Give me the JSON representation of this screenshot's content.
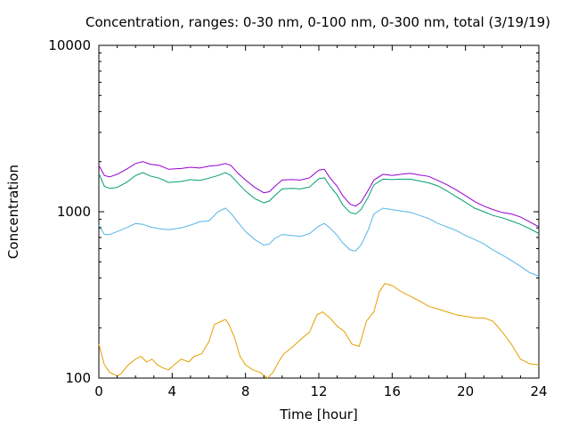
{
  "chart_data": {
    "type": "line",
    "title": "Concentration, ranges: 0-30 nm, 0-100 nm, 0-300 nm, total (3/19/19)",
    "xlabel": "Time [hour]",
    "ylabel": "Concentration",
    "xlim": [
      0,
      24
    ],
    "ylim": [
      100,
      10000
    ],
    "y_scale": "log",
    "grid": false,
    "x_ticks": [
      0,
      4,
      8,
      12,
      16,
      20,
      24
    ],
    "x_tick_labels": [
      "0",
      "4",
      "8",
      "12",
      "16",
      "20",
      "24"
    ],
    "y_ticks": [
      100,
      1000,
      10000
    ],
    "y_tick_labels": [
      "100",
      "1000",
      "10000"
    ],
    "series": [
      {
        "color": "#9400d3",
        "x": [
          0,
          0.3,
          0.6,
          1,
          1.5,
          2,
          2.4,
          2.8,
          3.3,
          3.8,
          4.5,
          5,
          5.5,
          6,
          6.5,
          6.9,
          7.2,
          7.6,
          8,
          8.5,
          9,
          9.3,
          9.6,
          10,
          10.5,
          11,
          11.5,
          12,
          12.3,
          12.6,
          13,
          13.3,
          13.7,
          14,
          14.3,
          14.7,
          15,
          15.5,
          16,
          16.5,
          17,
          17.5,
          18,
          18.5,
          19,
          19.5,
          20,
          20.5,
          21,
          21.5,
          22,
          22.5,
          23,
          23.5,
          24
        ],
        "values": [
          1900,
          1650,
          1620,
          1680,
          1800,
          1950,
          2000,
          1930,
          1900,
          1800,
          1820,
          1850,
          1830,
          1880,
          1900,
          1950,
          1900,
          1700,
          1550,
          1400,
          1300,
          1320,
          1420,
          1550,
          1560,
          1550,
          1600,
          1780,
          1800,
          1600,
          1420,
          1250,
          1110,
          1080,
          1140,
          1350,
          1550,
          1680,
          1650,
          1680,
          1700,
          1660,
          1630,
          1540,
          1450,
          1350,
          1250,
          1150,
          1080,
          1030,
          990,
          970,
          930,
          870,
          810
        ]
      },
      {
        "color": "#009e73",
        "x": [
          0,
          0.3,
          0.6,
          1,
          1.5,
          2,
          2.4,
          2.8,
          3.3,
          3.8,
          4.5,
          5,
          5.5,
          6,
          6.5,
          6.9,
          7.2,
          7.6,
          8,
          8.5,
          9,
          9.3,
          9.6,
          10,
          10.5,
          11,
          11.5,
          12,
          12.3,
          12.6,
          13,
          13.3,
          13.7,
          14,
          14.3,
          14.7,
          15,
          15.5,
          16,
          16.5,
          17,
          17.5,
          18,
          18.5,
          19,
          19.5,
          20,
          20.5,
          21,
          21.5,
          22,
          22.5,
          23,
          23.5,
          24
        ],
        "values": [
          1700,
          1420,
          1380,
          1400,
          1500,
          1650,
          1720,
          1640,
          1590,
          1500,
          1520,
          1560,
          1540,
          1590,
          1650,
          1720,
          1650,
          1480,
          1330,
          1200,
          1130,
          1160,
          1250,
          1370,
          1380,
          1370,
          1410,
          1580,
          1600,
          1430,
          1260,
          1100,
          990,
          970,
          1030,
          1230,
          1450,
          1570,
          1560,
          1570,
          1570,
          1530,
          1490,
          1430,
          1330,
          1230,
          1140,
          1050,
          1000,
          950,
          920,
          880,
          840,
          790,
          740
        ]
      },
      {
        "color": "#56b4e9",
        "x": [
          0,
          0.3,
          0.6,
          1,
          1.5,
          2,
          2.4,
          2.8,
          3.3,
          3.8,
          4.5,
          5,
          5.5,
          6,
          6.5,
          6.9,
          7.2,
          7.6,
          8,
          8.5,
          9,
          9.3,
          9.6,
          10,
          10.5,
          11,
          11.5,
          12,
          12.3,
          12.6,
          13,
          13.3,
          13.7,
          14,
          14.3,
          14.7,
          15,
          15.5,
          16,
          16.5,
          17,
          17.5,
          18,
          18.5,
          19,
          19.5,
          20,
          20.5,
          21,
          21.5,
          22,
          22.5,
          23,
          23.5,
          24
        ],
        "values": [
          830,
          730,
          730,
          760,
          800,
          850,
          840,
          810,
          790,
          780,
          800,
          830,
          870,
          880,
          1000,
          1050,
          980,
          860,
          760,
          680,
          630,
          640,
          690,
          730,
          720,
          710,
          740,
          820,
          850,
          800,
          720,
          650,
          590,
          580,
          630,
          780,
          970,
          1050,
          1030,
          1010,
          990,
          950,
          910,
          850,
          810,
          770,
          720,
          680,
          640,
          590,
          550,
          510,
          470,
          430,
          410
        ]
      },
      {
        "color": "#e69f00",
        "x": [
          0,
          0.3,
          0.6,
          1,
          1.2,
          1.6,
          2,
          2.3,
          2.6,
          2.9,
          3.2,
          3.5,
          3.8,
          4.1,
          4.5,
          4.9,
          5.2,
          5.6,
          6,
          6.3,
          6.7,
          6.9,
          7.1,
          7.4,
          7.7,
          8,
          8.4,
          8.8,
          9.2,
          9.5,
          9.8,
          10.1,
          10.6,
          11,
          11.5,
          11.9,
          12.2,
          12.6,
          13,
          13.4,
          13.8,
          14.2,
          14.6,
          15,
          15.3,
          15.6,
          16,
          16.5,
          17,
          17.5,
          18,
          18.5,
          19,
          19.5,
          20,
          20.5,
          21,
          21.5,
          22,
          22.5,
          23,
          23.5,
          24
        ],
        "values": [
          160,
          120,
          108,
          103,
          106,
          120,
          130,
          135,
          125,
          130,
          120,
          115,
          112,
          120,
          130,
          125,
          135,
          140,
          165,
          210,
          220,
          225,
          210,
          175,
          135,
          120,
          112,
          108,
          100,
          108,
          125,
          140,
          155,
          170,
          190,
          240,
          250,
          230,
          205,
          190,
          160,
          155,
          220,
          250,
          330,
          370,
          360,
          330,
          310,
          290,
          270,
          260,
          250,
          240,
          235,
          230,
          230,
          220,
          190,
          160,
          130,
          122,
          120
        ]
      }
    ]
  }
}
